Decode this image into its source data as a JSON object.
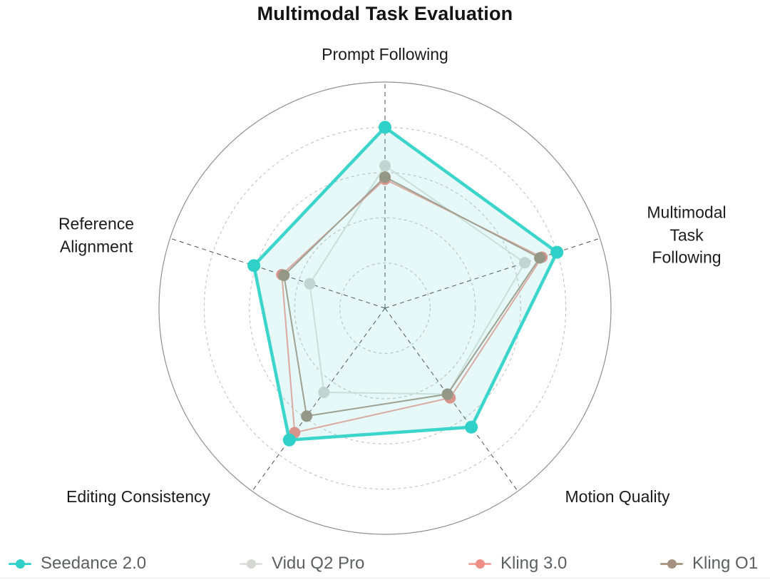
{
  "title": "Multimodal Task Evaluation",
  "chart_data": {
    "type": "radar",
    "title": "Multimodal Task Evaluation",
    "axes": [
      {
        "label": "Prompt Following"
      },
      {
        "label": "Multimodal\nTask Following"
      },
      {
        "label": "Motion Quality"
      },
      {
        "label": "Editing Consistency"
      },
      {
        "label": "Reference\nAlignment"
      }
    ],
    "scale": {
      "min": 0,
      "max": 1,
      "rings": [
        0.2,
        0.4,
        0.6,
        0.8
      ],
      "outer": 1.0,
      "grid": "dashed-circles",
      "tick_labels_shown": false
    },
    "legend_position": "bottom",
    "series": [
      {
        "name": "Seedance 2.0",
        "color": "#2ed0c8",
        "line_color": "#3bd5cc",
        "fill": "rgba(46,208,200,0.12)",
        "line_width": 4.5,
        "marker_radius": 9,
        "values": [
          0.8,
          0.8,
          0.65,
          0.72,
          0.61
        ]
      },
      {
        "name": "Vidu Q2 Pro",
        "color": "#d5d8d2",
        "line_color": "#dfe2dc",
        "fill": "none",
        "line_width": 2,
        "marker_radius": 8,
        "values": [
          0.63,
          0.65,
          0.47,
          0.46,
          0.35
        ]
      },
      {
        "name": "Kling 3.0",
        "color": "#ee8e84",
        "line_color": "#f2a69e",
        "fill": "none",
        "line_width": 2,
        "marker_radius": 8,
        "values": [
          0.57,
          0.73,
          0.49,
          0.68,
          0.48
        ]
      },
      {
        "name": "Kling O1",
        "color": "#a3907e",
        "line_color": "#ad9b8a",
        "fill": "none",
        "line_width": 2,
        "marker_radius": 8,
        "values": [
          0.58,
          0.72,
          0.47,
          0.59,
          0.47
        ]
      }
    ],
    "grid_colors": {
      "outer_circle": "#8f8f8f",
      "rings": "#bdbdbd",
      "spokes": "#4d4d4d"
    }
  }
}
